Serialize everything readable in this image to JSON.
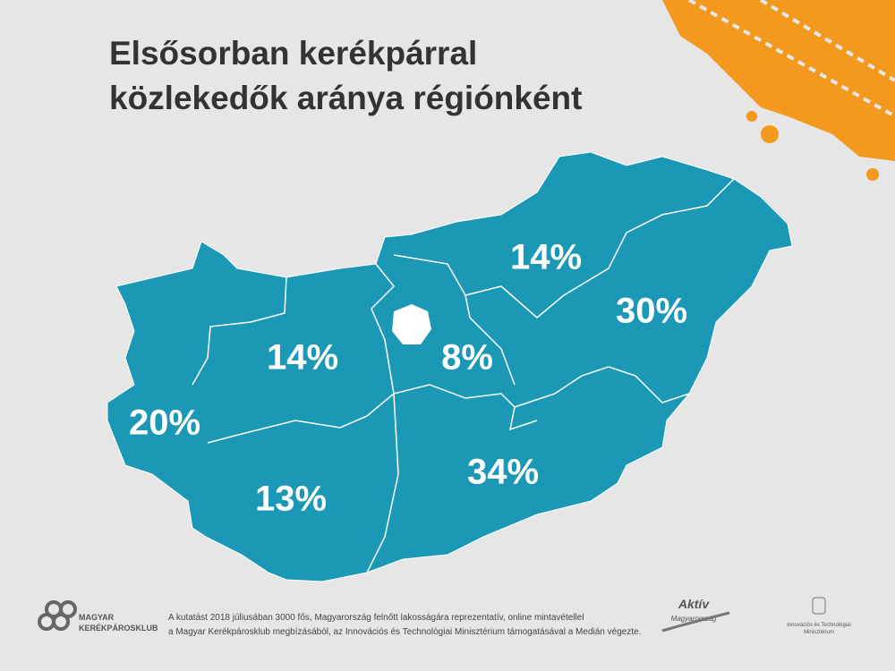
{
  "header": {
    "title_lines": [
      "Elsősorban kerékpárral",
      "közlekedők aránya régiónként"
    ]
  },
  "map": {
    "regions": [
      {
        "label": "14%"
      },
      {
        "label": "30%"
      },
      {
        "label": "14%"
      },
      {
        "label": "8%"
      },
      {
        "label": "20%"
      },
      {
        "label": "34%"
      },
      {
        "label": "13%"
      }
    ]
  },
  "footer": {
    "logo_left": [
      "MAGYAR",
      "KERÉKPÁROSKLUB"
    ],
    "note_lines": [
      "A kutatást 2018 júliusában 3000 fős, Magyarország felnőtt lakosságára reprezentatív, online mintavétellel",
      "a Magyar Kerékpárosklub megbízásából, az Innovációs és Technológiai Minisztérium támogatásával a Medián végezte."
    ],
    "logo_middle": [
      "Aktív",
      "Magyarország"
    ],
    "logo_right": [
      "Innovációs és Technológiai",
      "Minisztérium"
    ]
  }
}
